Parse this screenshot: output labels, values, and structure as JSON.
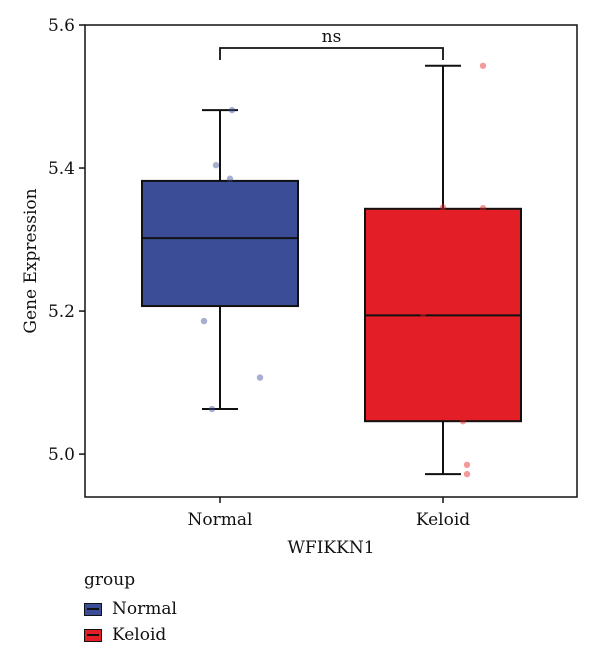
{
  "chart_data": {
    "type": "box",
    "xlabel": "WFIKKN1",
    "ylabel": "Gene Expression",
    "ylim": [
      4.94,
      5.6
    ],
    "yticks": [
      5.0,
      5.2,
      5.4,
      5.6
    ],
    "categories": [
      "Normal",
      "Keloid"
    ],
    "series": [
      {
        "name": "Normal",
        "color": "#3b4d96",
        "whisker_low": 5.063,
        "q1": 5.207,
        "median": 5.302,
        "q3": 5.382,
        "whisker_high": 5.481,
        "points": [
          5.481,
          5.404,
          5.385,
          5.186,
          5.107,
          5.063
        ]
      },
      {
        "name": "Keloid",
        "color": "#e41e26",
        "whisker_low": 4.972,
        "q1": 5.046,
        "median": 5.194,
        "q3": 5.343,
        "whisker_high": 5.543,
        "points": [
          5.543,
          5.345,
          5.344,
          5.196,
          5.046,
          4.985,
          4.972
        ]
      }
    ],
    "annotation": {
      "label": "ns",
      "from": "Normal",
      "to": "Keloid"
    }
  },
  "legend": {
    "title": "group",
    "items": [
      {
        "label": "Normal",
        "color": "#3b4d96"
      },
      {
        "label": "Keloid",
        "color": "#e41e26"
      }
    ]
  }
}
